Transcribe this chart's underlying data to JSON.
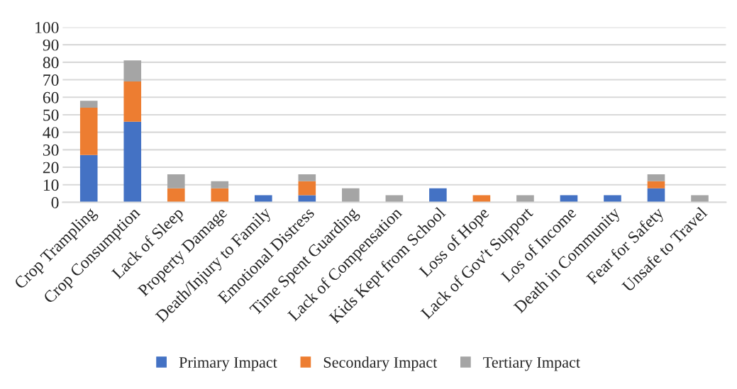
{
  "chart_data": {
    "type": "bar",
    "stacked": true,
    "categories": [
      "Crop Trampling",
      "Crop Consumption",
      "Lack of Sleep",
      "Property Damage",
      "Death/Injury to Family",
      "Emotional Distress",
      "Time Spent Guarding",
      "Lack of Compensation",
      "Kids Kept from School",
      "Loss of Hope",
      "Lack of Gov't Support",
      "Los of Income",
      "Death in Community",
      "Fear for Safety",
      "Unsafe to Travel"
    ],
    "series": [
      {
        "name": "Primary Impact",
        "color": "#4472c4",
        "values": [
          27,
          46,
          0,
          0,
          4,
          4,
          0,
          0,
          8,
          0,
          0,
          4,
          4,
          8,
          0
        ]
      },
      {
        "name": "Secondary Impact",
        "color": "#ed7d31",
        "values": [
          27,
          23,
          8,
          8,
          0,
          8,
          0,
          0,
          0,
          4,
          0,
          0,
          0,
          4,
          0
        ]
      },
      {
        "name": "Tertiary Impact",
        "color": "#a5a5a5",
        "values": [
          4,
          12,
          8,
          4,
          0,
          4,
          8,
          4,
          0,
          0,
          4,
          0,
          0,
          4,
          4
        ]
      }
    ],
    "ylim": [
      0,
      100
    ],
    "yticks": [
      0,
      10,
      20,
      30,
      40,
      50,
      60,
      70,
      80,
      90,
      100
    ],
    "grid": "y",
    "legend": "bottom"
  }
}
